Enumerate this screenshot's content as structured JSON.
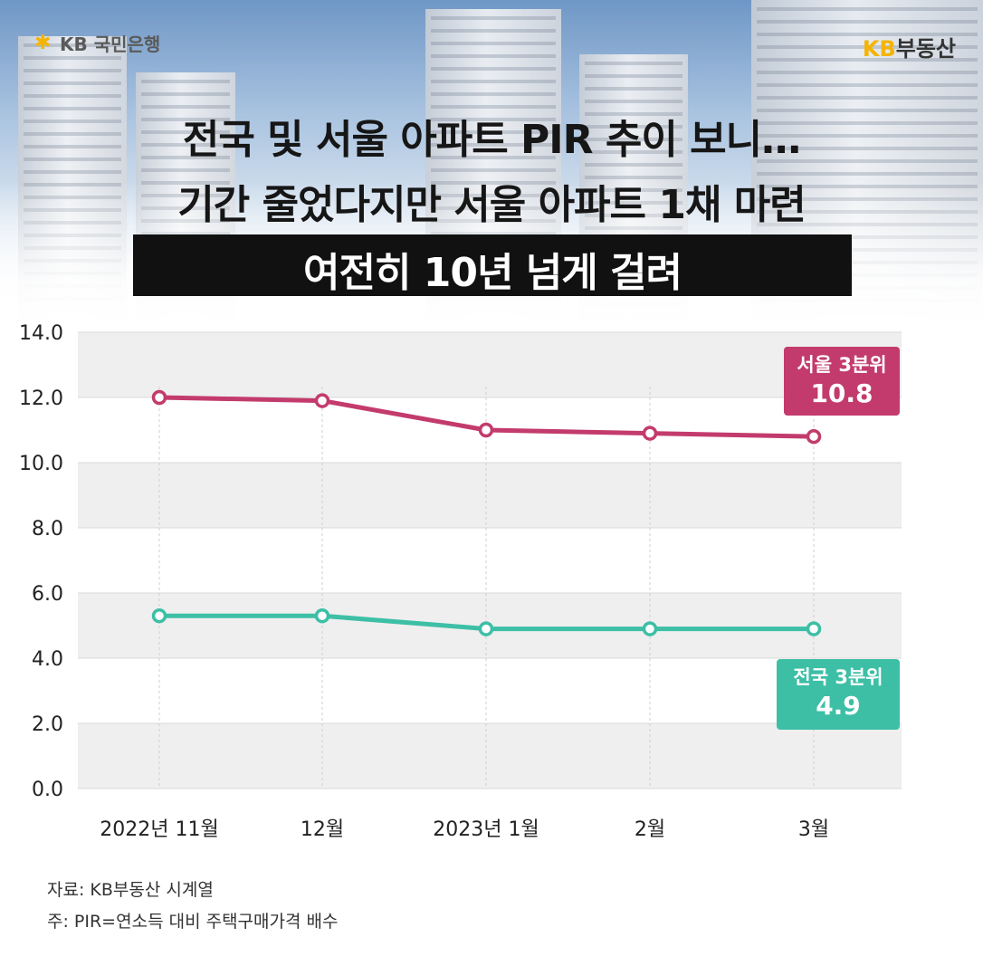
{
  "brand": {
    "left_logo_text": "KB 국민은행",
    "right_logo_kb": "KB",
    "right_logo_text": "부동산"
  },
  "headline": {
    "line1": "전국 및 서울 아파트 PIR 추이 보니…",
    "line2": "기간 줄었다지만 서울 아파트 1채 마련",
    "banner": "여전히 10년 넘게 걸려"
  },
  "chart_data": {
    "type": "line",
    "categories": [
      "2022년 11월",
      "12월",
      "2023년 1월",
      "2월",
      "3월"
    ],
    "y_ticks": [
      "0.0",
      "2.0",
      "4.0",
      "6.0",
      "8.0",
      "10.0",
      "12.0",
      "14.0"
    ],
    "ylim": [
      0,
      14
    ],
    "grid": true,
    "series": [
      {
        "name": "서울 3분위",
        "values": [
          12.0,
          11.9,
          11.0,
          10.9,
          10.8
        ],
        "color": "#c33b6c"
      },
      {
        "name": "전국 3분위",
        "values": [
          5.3,
          5.3,
          4.9,
          4.9,
          4.9
        ],
        "color": "#3dbfa6"
      }
    ],
    "callouts": [
      {
        "label": "서울 3분위",
        "value": "10.8",
        "color": "#c33b6c"
      },
      {
        "label": "전국 3분위",
        "value": "4.9",
        "color": "#3dbfa6"
      }
    ]
  },
  "footnotes": {
    "source": "자료: KB부동산 시계열",
    "note": "주: PIR=연소득 대비 주택구매가격 배수"
  },
  "colors": {
    "seoul": "#c33b6c",
    "nation": "#3dbfa6",
    "banner_bg": "#111111",
    "accent": "#f4b400"
  },
  "icons": {
    "kb_star": "star-icon"
  }
}
